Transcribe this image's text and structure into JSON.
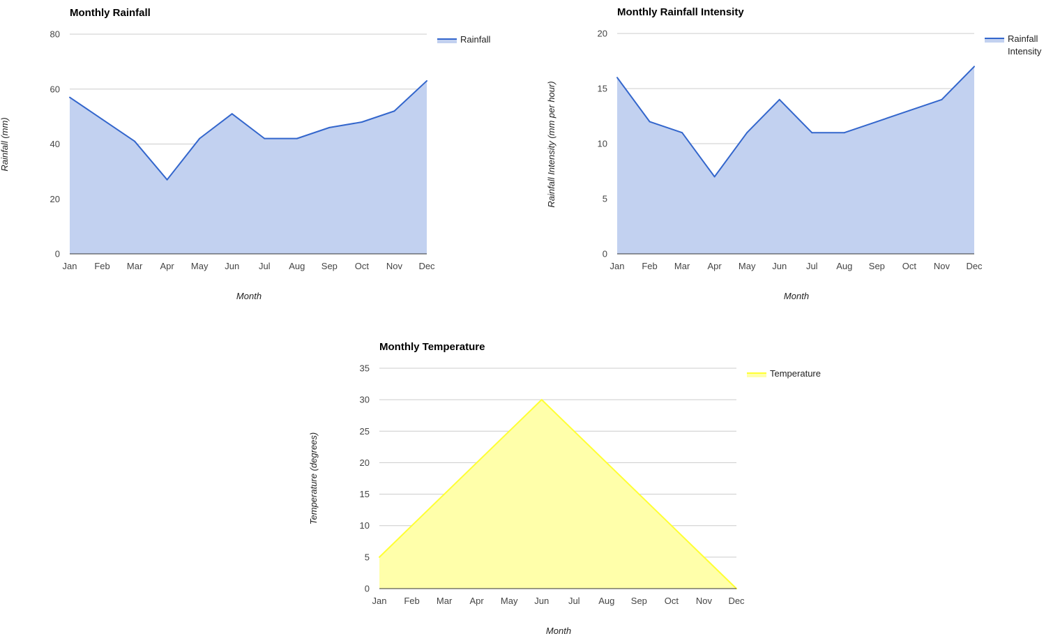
{
  "chart_data": [
    {
      "type": "area",
      "title": "Monthly Rainfall",
      "xlabel": "Month",
      "ylabel": "Rainfall (mm)",
      "categories": [
        "Jan",
        "Feb",
        "Mar",
        "Apr",
        "May",
        "Jun",
        "Jul",
        "Aug",
        "Sep",
        "Oct",
        "Nov",
        "Dec"
      ],
      "ylim": [
        0,
        80
      ],
      "yticks": [
        "0",
        "20",
        "40",
        "60",
        "80"
      ],
      "grid": true,
      "legend_position": "right",
      "series": [
        {
          "name": "Rainfall",
          "values": [
            57,
            49,
            41,
            27,
            42,
            51,
            42,
            42,
            46,
            48,
            52,
            63
          ],
          "line_color": "#3366cc",
          "fill_color": "#c2d1f0"
        }
      ]
    },
    {
      "type": "area",
      "title": "Monthly Rainfall Intensity",
      "xlabel": "Month",
      "ylabel": "Rainfall Intensity (mm per hour)",
      "categories": [
        "Jan",
        "Feb",
        "Mar",
        "Apr",
        "May",
        "Jun",
        "Jul",
        "Aug",
        "Sep",
        "Oct",
        "Nov",
        "Dec"
      ],
      "ylim": [
        0,
        20
      ],
      "yticks": [
        "0",
        "5",
        "10",
        "15",
        "20"
      ],
      "grid": true,
      "legend_position": "right",
      "series": [
        {
          "name": "Rainfall Intensity",
          "name_lines": [
            "Rainfall",
            "Intensity"
          ],
          "values": [
            16,
            12,
            11,
            7,
            11,
            14,
            11,
            11,
            12,
            13,
            14,
            17
          ],
          "line_color": "#3366cc",
          "fill_color": "#c2d1f0"
        }
      ]
    },
    {
      "type": "area",
      "title": "Monthly Temperature",
      "xlabel": "Month",
      "ylabel": "Temperature (degrees)",
      "categories": [
        "Jan",
        "Feb",
        "Mar",
        "Apr",
        "May",
        "Jun",
        "Jul",
        "Aug",
        "Sep",
        "Oct",
        "Nov",
        "Dec"
      ],
      "ylim": [
        0,
        35
      ],
      "yticks": [
        "0",
        "5",
        "10",
        "15",
        "20",
        "25",
        "30",
        "35"
      ],
      "grid": true,
      "legend_position": "right",
      "series": [
        {
          "name": "Temperature",
          "values": [
            5,
            10,
            15,
            20,
            25,
            30,
            25,
            20,
            15,
            10,
            5,
            0
          ],
          "line_color": "#ffff33",
          "fill_color": "#ffffaa"
        }
      ]
    }
  ]
}
